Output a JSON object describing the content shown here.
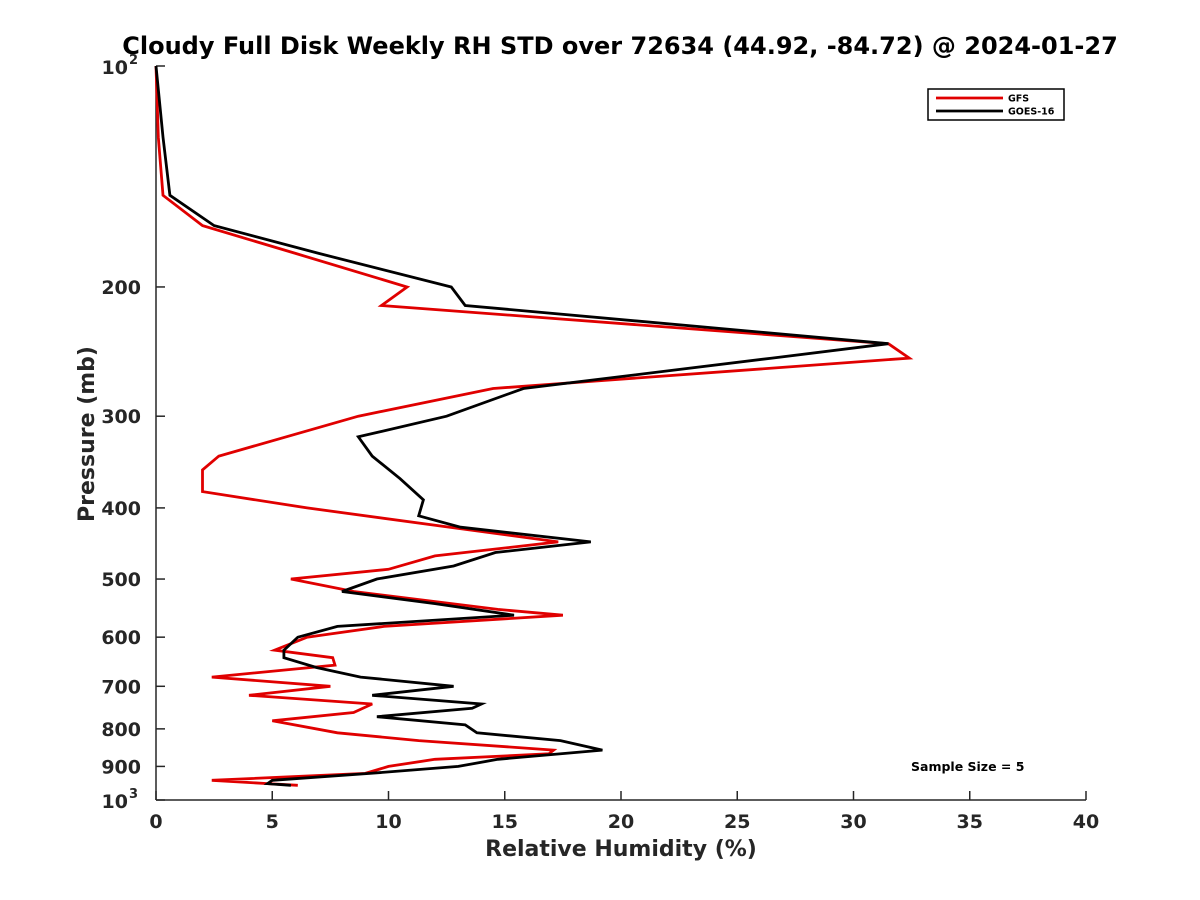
{
  "chart_data": {
    "type": "line",
    "title": "Cloudy Full Disk Weekly RH STD over 72634 (44.92, -84.72) @ 2024-01-27",
    "xlabel": "Relative Humidity (%)",
    "ylabel": "Pressure (mb)",
    "xlim": [
      0,
      40
    ],
    "ylim": [
      100,
      1000
    ],
    "yscale": "log",
    "y_reversed": true,
    "grid": false,
    "legend_position": "top-right",
    "x_ticks": [
      0,
      5,
      10,
      15,
      20,
      25,
      30,
      35,
      40
    ],
    "x_tick_labels": [
      "0",
      "5",
      "10",
      "15",
      "20",
      "25",
      "30",
      "35",
      "40"
    ],
    "y_ticks": [
      {
        "value": 100,
        "label": "10",
        "exponent": "2"
      },
      {
        "value": 200,
        "label": "200"
      },
      {
        "value": 300,
        "label": "300"
      },
      {
        "value": 400,
        "label": "400"
      },
      {
        "value": 500,
        "label": "500"
      },
      {
        "value": 600,
        "label": "600"
      },
      {
        "value": 700,
        "label": "700"
      },
      {
        "value": 800,
        "label": "800"
      },
      {
        "value": 900,
        "label": "900"
      },
      {
        "value": 1000,
        "label": "10",
        "exponent": "3"
      }
    ],
    "annotation": "Sample Size = 5",
    "series": [
      {
        "name": "GFS",
        "color": "#e00000",
        "points": [
          [
            0,
            100
          ],
          [
            0.1,
            125
          ],
          [
            0.3,
            150
          ],
          [
            2.0,
            165
          ],
          [
            6.0,
            180
          ],
          [
            10.8,
            200
          ],
          [
            9.7,
            212
          ],
          [
            31.5,
            239
          ],
          [
            32.4,
            250
          ],
          [
            14.5,
            275
          ],
          [
            8.7,
            300
          ],
          [
            2.7,
            340
          ],
          [
            2.0,
            355
          ],
          [
            2.0,
            380
          ],
          [
            6.5,
            400
          ],
          [
            17.3,
            445
          ],
          [
            12.0,
            465
          ],
          [
            10.0,
            485
          ],
          [
            5.8,
            500
          ],
          [
            8.5,
            520
          ],
          [
            14.7,
            550
          ],
          [
            17.5,
            560
          ],
          [
            9.8,
            580
          ],
          [
            6.5,
            600
          ],
          [
            5.1,
            625
          ],
          [
            7.6,
            640
          ],
          [
            7.7,
            655
          ],
          [
            2.4,
            680
          ],
          [
            7.5,
            700
          ],
          [
            4.0,
            720
          ],
          [
            9.3,
            740
          ],
          [
            8.5,
            760
          ],
          [
            5.0,
            780
          ],
          [
            7.8,
            810
          ],
          [
            11.3,
            830
          ],
          [
            17.1,
            855
          ],
          [
            16.9,
            865
          ],
          [
            12.0,
            880
          ],
          [
            10.0,
            900
          ],
          [
            9.0,
            920
          ],
          [
            2.4,
            940
          ],
          [
            4.8,
            950
          ],
          [
            6.1,
            955
          ]
        ]
      },
      {
        "name": "GOES-16",
        "color": "#000000",
        "points": [
          [
            0,
            100
          ],
          [
            0.3,
            125
          ],
          [
            0.6,
            150
          ],
          [
            2.5,
            165
          ],
          [
            7.0,
            180
          ],
          [
            12.7,
            200
          ],
          [
            13.3,
            212
          ],
          [
            31.5,
            239
          ],
          [
            26.5,
            250
          ],
          [
            15.8,
            275
          ],
          [
            12.5,
            300
          ],
          [
            8.7,
            320
          ],
          [
            9.3,
            340
          ],
          [
            10.5,
            365
          ],
          [
            11.5,
            390
          ],
          [
            11.3,
            410
          ],
          [
            13.1,
            425
          ],
          [
            18.7,
            445
          ],
          [
            14.6,
            460
          ],
          [
            12.8,
            480
          ],
          [
            9.5,
            500
          ],
          [
            8.0,
            520
          ],
          [
            12.0,
            540
          ],
          [
            15.4,
            560
          ],
          [
            7.8,
            580
          ],
          [
            6.1,
            600
          ],
          [
            5.5,
            625
          ],
          [
            5.5,
            640
          ],
          [
            6.9,
            660
          ],
          [
            8.8,
            680
          ],
          [
            12.8,
            700
          ],
          [
            9.3,
            720
          ],
          [
            14.0,
            740
          ],
          [
            13.6,
            750
          ],
          [
            9.5,
            770
          ],
          [
            13.3,
            790
          ],
          [
            13.8,
            810
          ],
          [
            17.4,
            830
          ],
          [
            19.2,
            855
          ],
          [
            14.7,
            880
          ],
          [
            13.0,
            900
          ],
          [
            9.2,
            920
          ],
          [
            5.0,
            940
          ],
          [
            4.8,
            950
          ],
          [
            5.8,
            955
          ]
        ]
      }
    ]
  }
}
